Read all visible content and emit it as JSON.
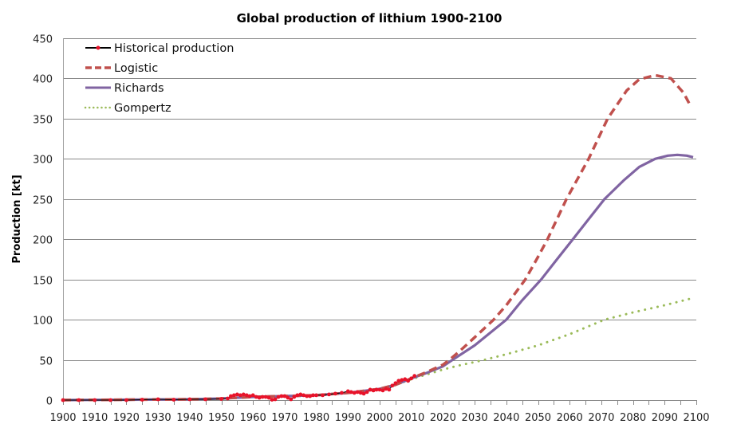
{
  "chart_data": {
    "type": "line",
    "title": "Global production of lithium 1900-2100",
    "xlabel": "",
    "ylabel": "Production  [kt]",
    "xlim": [
      1900,
      2100
    ],
    "ylim": [
      0,
      450
    ],
    "x_ticks": [
      1900,
      1910,
      1920,
      1930,
      1940,
      1950,
      1960,
      1970,
      1980,
      1990,
      2000,
      2010,
      2020,
      2030,
      2040,
      2050,
      2060,
      2070,
      2080,
      2090,
      2100
    ],
    "x_tick_labels": [
      "1900",
      "1910",
      "1920",
      "1930",
      "1940",
      "1950",
      "1960",
      "1970",
      "1980",
      "1990",
      "2000",
      "2010",
      "2020",
      "2030",
      "2040",
      "2050",
      "2060",
      "2070",
      "2080",
      "2090",
      "2100"
    ],
    "y_ticks": [
      0,
      50,
      100,
      150,
      200,
      250,
      300,
      350,
      400,
      450
    ],
    "y_tick_labels": [
      "0",
      "50",
      "100",
      "150",
      "200",
      "250",
      "300",
      "350",
      "400",
      "450"
    ],
    "grid": "horizontal",
    "legend_position": "top-left",
    "series": [
      {
        "name": "Historical production",
        "style": "solid-markers",
        "color": "#000000",
        "marker_color": "#e8132a",
        "x": [
          1900,
          1905,
          1910,
          1915,
          1920,
          1925,
          1930,
          1935,
          1940,
          1945,
          1950,
          1952,
          1953,
          1954,
          1955,
          1956,
          1957,
          1958,
          1959,
          1960,
          1961,
          1962,
          1963,
          1964,
          1965,
          1966,
          1967,
          1968,
          1969,
          1970,
          1971,
          1972,
          1973,
          1974,
          1975,
          1976,
          1977,
          1978,
          1979,
          1980,
          1982,
          1984,
          1986,
          1988,
          1990,
          1991,
          1992,
          1993,
          1994,
          1995,
          1996,
          1997,
          1998,
          1999,
          2000,
          2001,
          2002,
          2003,
          2004,
          2005,
          2006,
          2007,
          2008,
          2009,
          2010,
          2011
        ],
        "y": [
          0,
          0,
          0,
          0,
          0,
          0.5,
          1,
          0.5,
          1,
          1,
          1.5,
          2,
          5,
          6,
          7,
          6,
          7,
          6,
          5,
          6,
          4,
          3,
          4,
          4,
          3,
          0.5,
          1,
          4,
          5,
          5,
          3,
          1,
          4,
          6,
          7,
          6,
          5,
          5,
          6,
          6,
          6,
          7,
          8,
          9,
          11,
          10,
          9,
          10,
          9,
          8,
          10,
          13,
          12,
          13,
          13,
          12,
          14,
          13,
          18,
          21,
          24,
          25,
          26,
          24,
          27,
          30
        ]
      },
      {
        "name": "Logistic",
        "style": "dashed",
        "color": "#c0504d",
        "x": [
          1900,
          1920,
          1940,
          1950,
          1960,
          1970,
          1980,
          1990,
          2000,
          2005,
          2010,
          2015,
          2020,
          2022,
          2025,
          2030,
          2036,
          2040,
          2046,
          2050,
          2053,
          2059,
          2066,
          2072,
          2078,
          2082,
          2087,
          2092,
          2096,
          2098
        ],
        "y": [
          0,
          0.5,
          1,
          2,
          4,
          5,
          6,
          9,
          14,
          19,
          27,
          35,
          44,
          50,
          60,
          78,
          100,
          118,
          150,
          178,
          200,
          250,
          300,
          350,
          385,
          399,
          404,
          400,
          382,
          367
        ]
      },
      {
        "name": "Richards",
        "style": "solid",
        "color": "#8064a2",
        "x": [
          1900,
          1920,
          1940,
          1950,
          1960,
          1970,
          1980,
          1990,
          2000,
          2005,
          2010,
          2015,
          2020,
          2023,
          2030,
          2040,
          2045,
          2051,
          2056,
          2061,
          2066,
          2071,
          2077,
          2082,
          2087,
          2091,
          2094,
          2097,
          2099
        ],
        "y": [
          0,
          0.5,
          1,
          2,
          4,
          5,
          6,
          9,
          14,
          19,
          27,
          34,
          42,
          50,
          68,
          100,
          124,
          150,
          175,
          200,
          225,
          250,
          273,
          290,
          300,
          304,
          305,
          304,
          302
        ]
      },
      {
        "name": "Gompertz",
        "style": "dotted",
        "color": "#9bbb59",
        "x": [
          1900,
          1920,
          1940,
          1950,
          1960,
          1970,
          1980,
          1990,
          2000,
          2005,
          2010,
          2015,
          2020,
          2025,
          2033,
          2040,
          2050,
          2060,
          2071,
          2080,
          2090,
          2098
        ],
        "y": [
          0,
          0.5,
          1,
          2,
          4,
          5,
          6,
          9,
          14,
          19,
          26,
          32,
          38,
          43,
          50,
          57,
          68,
          82,
          100,
          109,
          118,
          126
        ]
      }
    ]
  }
}
